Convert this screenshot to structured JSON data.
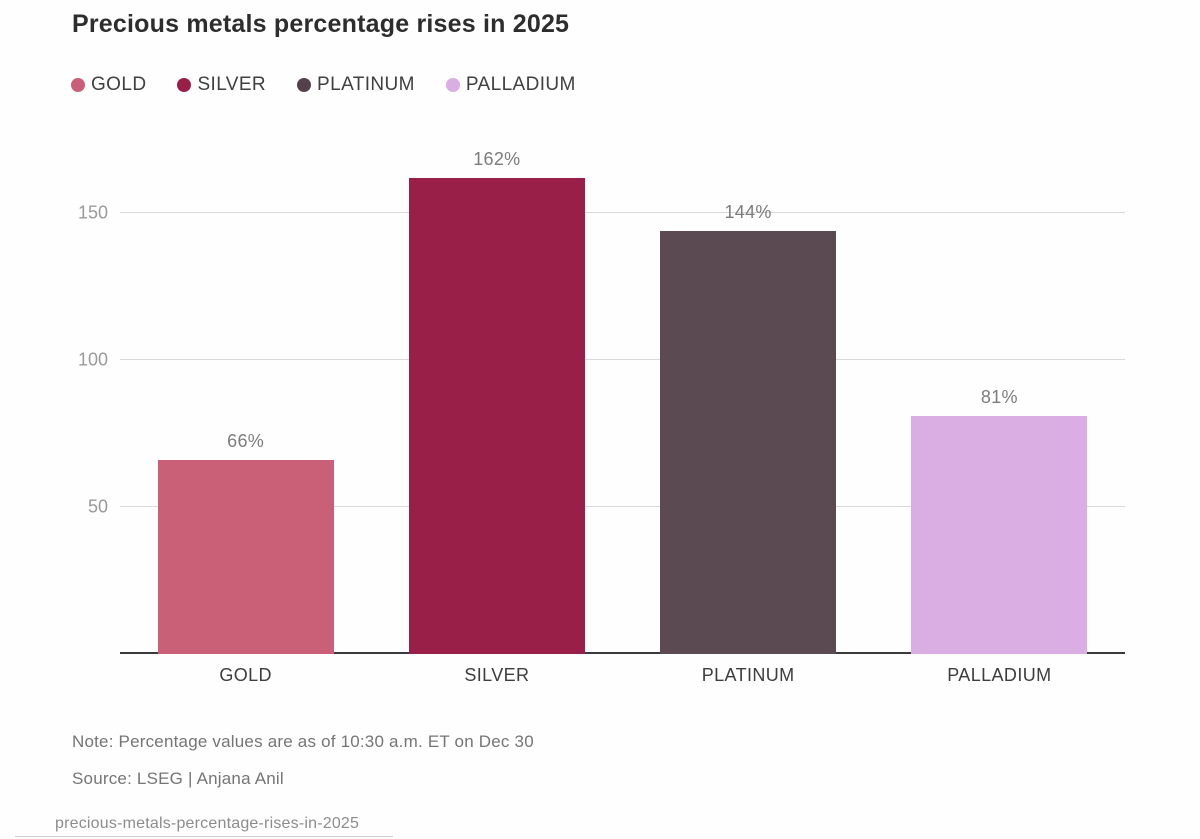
{
  "title": "Precious metals percentage rises in 2025",
  "legend": {
    "items": [
      {
        "label": "GOLD",
        "color": "#c96077"
      },
      {
        "label": "SILVER",
        "color": "#9a1f48"
      },
      {
        "label": "PLATINUM",
        "color": "#55414c"
      },
      {
        "label": "PALLADIUM",
        "color": "#daaee2"
      }
    ]
  },
  "chart_data": {
    "type": "bar",
    "title": "Precious metals percentage rises in 2025",
    "categories": [
      "GOLD",
      "SILVER",
      "PLATINUM",
      "PALLADIUM"
    ],
    "values": [
      66,
      162,
      144,
      81
    ],
    "value_labels": [
      "66%",
      "162%",
      "144%",
      "81%"
    ],
    "bar_colors": [
      "#c96077",
      "#9a1f48",
      "#5c4a52",
      "#daaee2"
    ],
    "xlabel": "",
    "ylabel": "",
    "ylim": [
      0,
      175
    ],
    "yticks": [
      50,
      100,
      150
    ],
    "grid": true,
    "legend_position": "top"
  },
  "footer": {
    "note": "Note: Percentage values are as of 10:30 a.m. ET on Dec 30",
    "source": "Source: LSEG | Anjana Anil",
    "filename": "precious-metals-percentage-rises-in-2025"
  },
  "colors": {
    "background": "#fefefe",
    "title_text": "#2d2d2d",
    "axis_line": "#3b3b3b",
    "gridline": "#d9d9d9",
    "tick_text": "#9a9a9a",
    "value_label_text": "#7c7c7c",
    "category_text": "#3d3d3d",
    "note_text": "#757575",
    "filename_text": "#8c8c8c"
  }
}
